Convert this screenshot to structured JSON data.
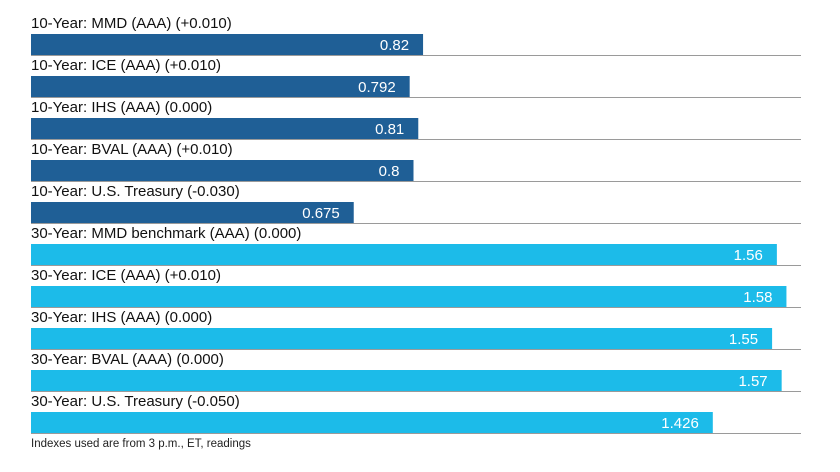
{
  "chart_data": {
    "type": "bar",
    "orientation": "horizontal",
    "categories": [
      "10-Year: MMD (AAA) (+0.010)",
      "10-Year: ICE (AAA) (+0.010)",
      "10-Year: IHS (AAA) (0.000)",
      "10-Year: BVAL (AAA) (+0.010)",
      "10-Year: U.S. Treasury (-0.030)",
      "30-Year: MMD benchmark (AAA) (0.000)",
      "30-Year: ICE (AAA) (+0.010)",
      "30-Year: IHS (AAA) (0.000)",
      "30-Year: BVAL (AAA) (0.000)",
      "30-Year: U.S. Treasury (-0.050)"
    ],
    "values": [
      0.82,
      0.792,
      0.81,
      0.8,
      0.675,
      1.56,
      1.58,
      1.55,
      1.57,
      1.426
    ],
    "value_labels": [
      "0.82",
      "0.792",
      "0.81",
      "0.8",
      "0.675",
      "1.56",
      "1.58",
      "1.55",
      "1.57",
      "1.426"
    ],
    "bar_colors": [
      "#1f5f96",
      "#1f5f96",
      "#1f5f96",
      "#1f5f96",
      "#1f5f96",
      "#1cbbe9",
      "#1cbbe9",
      "#1cbbe9",
      "#1cbbe9",
      "#1cbbe9"
    ],
    "xlim": [
      0,
      1.6
    ],
    "grid": false,
    "legend": "none"
  },
  "footnote": "Indexes used are from 3 p.m., ET, readings"
}
